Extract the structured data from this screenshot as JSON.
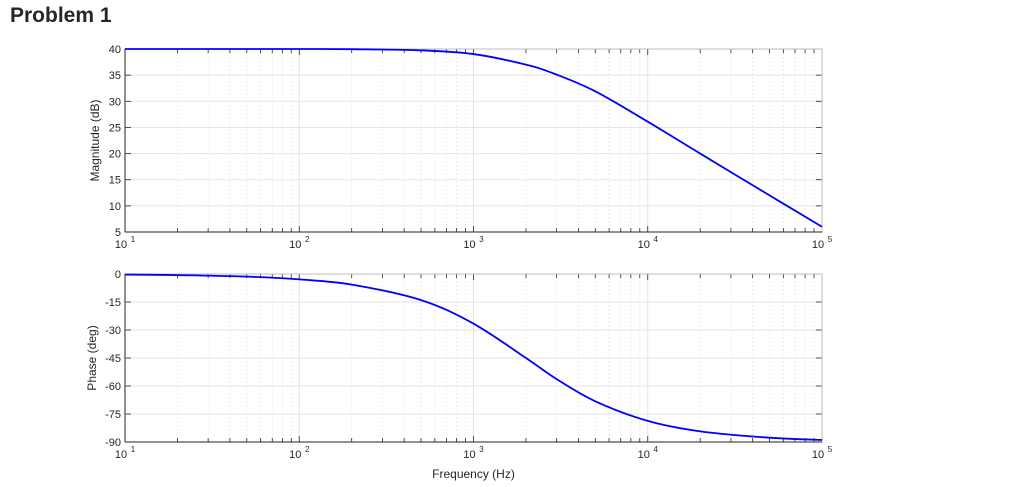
{
  "page": {
    "title": "Problem 1"
  },
  "colors": {
    "curve": "#0000ff",
    "axis": "#262626",
    "major_grid": "#e3e3e3",
    "minor_grid": "#d0d0d0",
    "background": "#ffffff"
  },
  "chart_data": [
    {
      "type": "line",
      "title": "",
      "xlabel": "",
      "ylabel": "Magnitude (dB)",
      "xscale": "log",
      "xlim": [
        10,
        100000
      ],
      "ylim": [
        5,
        40
      ],
      "grid": true,
      "x_tick_labels": [
        "10^1",
        "10^2",
        "10^3",
        "10^4",
        "10^5"
      ],
      "y_ticks": [
        5,
        10,
        15,
        20,
        25,
        30,
        35,
        40
      ],
      "series": [
        {
          "name": "Magnitude",
          "x": [
            10,
            20,
            50,
            100,
            200,
            500,
            1000,
            2000,
            3000,
            5000,
            10000,
            20000,
            50000,
            100000
          ],
          "values": [
            40.0,
            40.0,
            40.0,
            40.0,
            39.96,
            39.74,
            39.03,
            37.0,
            35.1,
            31.9,
            26.1,
            20.0,
            12.0,
            6.0
          ]
        }
      ]
    },
    {
      "type": "line",
      "title": "",
      "xlabel": "Frequency (Hz)",
      "ylabel": "Phase (deg)",
      "xscale": "log",
      "xlim": [
        10,
        100000
      ],
      "ylim": [
        -90,
        0
      ],
      "grid": true,
      "x_tick_labels": [
        "10^1",
        "10^2",
        "10^3",
        "10^4",
        "10^5"
      ],
      "y_ticks": [
        -90,
        -75,
        -60,
        -45,
        -30,
        -15,
        0
      ],
      "series": [
        {
          "name": "Phase",
          "x": [
            10,
            20,
            50,
            100,
            200,
            500,
            1000,
            2000,
            3000,
            5000,
            10000,
            20000,
            50000,
            100000
          ],
          "values": [
            -0.3,
            -0.6,
            -1.4,
            -2.9,
            -5.7,
            -14.0,
            -26.6,
            -45.0,
            -56.3,
            -68.2,
            -78.7,
            -84.3,
            -87.7,
            -88.9
          ]
        }
      ]
    }
  ],
  "plots": {
    "magnitude": {
      "ylabel": "Magnitude (dB)",
      "y_tick_labels": [
        "40",
        "35",
        "30",
        "25",
        "20",
        "15",
        "10",
        "5"
      ]
    },
    "phase": {
      "ylabel": "Phase (deg)",
      "xlabel": "Frequency (Hz)",
      "y_tick_labels": [
        "0",
        "-15",
        "-30",
        "-45",
        "-60",
        "-75",
        "-90"
      ]
    },
    "x_tick_base": "10",
    "x_tick_exponents": [
      "1",
      "2",
      "3",
      "4",
      "5"
    ]
  }
}
